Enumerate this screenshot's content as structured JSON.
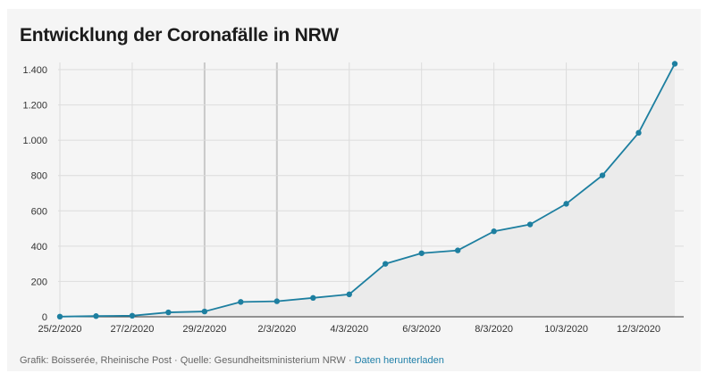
{
  "title": "Entwicklung der Coronafälle in NRW",
  "footer": {
    "source_text": "Grafik: Boisserée, Rheinische Post · Quelle: Gesundheitsministerium NRW",
    "separator": "·",
    "download_link": "Daten herunterladen"
  },
  "colors": {
    "line": "#1d7fa0",
    "area": "#ebebeb",
    "grid": "#dcdcdc",
    "grid_major_vertical": "#c8c8c8",
    "link": "#1e7fa8"
  },
  "chart_data": {
    "type": "area",
    "title": "Entwicklung der Coronafälle in NRW",
    "xlabel": "",
    "ylabel": "",
    "ylim": [
      0,
      1400
    ],
    "yticks": [
      0,
      200,
      400,
      600,
      800,
      1000,
      1200,
      1400
    ],
    "ytick_labels": [
      "0",
      "200",
      "400",
      "600",
      "800",
      "1.000",
      "1.200",
      "1.400"
    ],
    "x": [
      "25/2/2020",
      "26/2/2020",
      "27/2/2020",
      "28/2/2020",
      "29/2/2020",
      "1/3/2020",
      "2/3/2020",
      "3/3/2020",
      "4/3/2020",
      "5/3/2020",
      "6/3/2020",
      "7/3/2020",
      "8/3/2020",
      "9/3/2020",
      "10/3/2020",
      "11/3/2020",
      "12/3/2020",
      "13/3/2020"
    ],
    "xtick_labels": [
      "25/2/2020",
      "27/2/2020",
      "29/2/2020",
      "2/3/2020",
      "4/3/2020",
      "6/3/2020",
      "8/3/2020",
      "10/3/2020",
      "12/3/2020"
    ],
    "series": [
      {
        "values": [
          1,
          4,
          6,
          25,
          30,
          84,
          88,
          107,
          127,
          300,
          360,
          376,
          484,
          523,
          640,
          801,
          1042,
          1433
        ]
      }
    ],
    "grid": true,
    "markers": true
  }
}
